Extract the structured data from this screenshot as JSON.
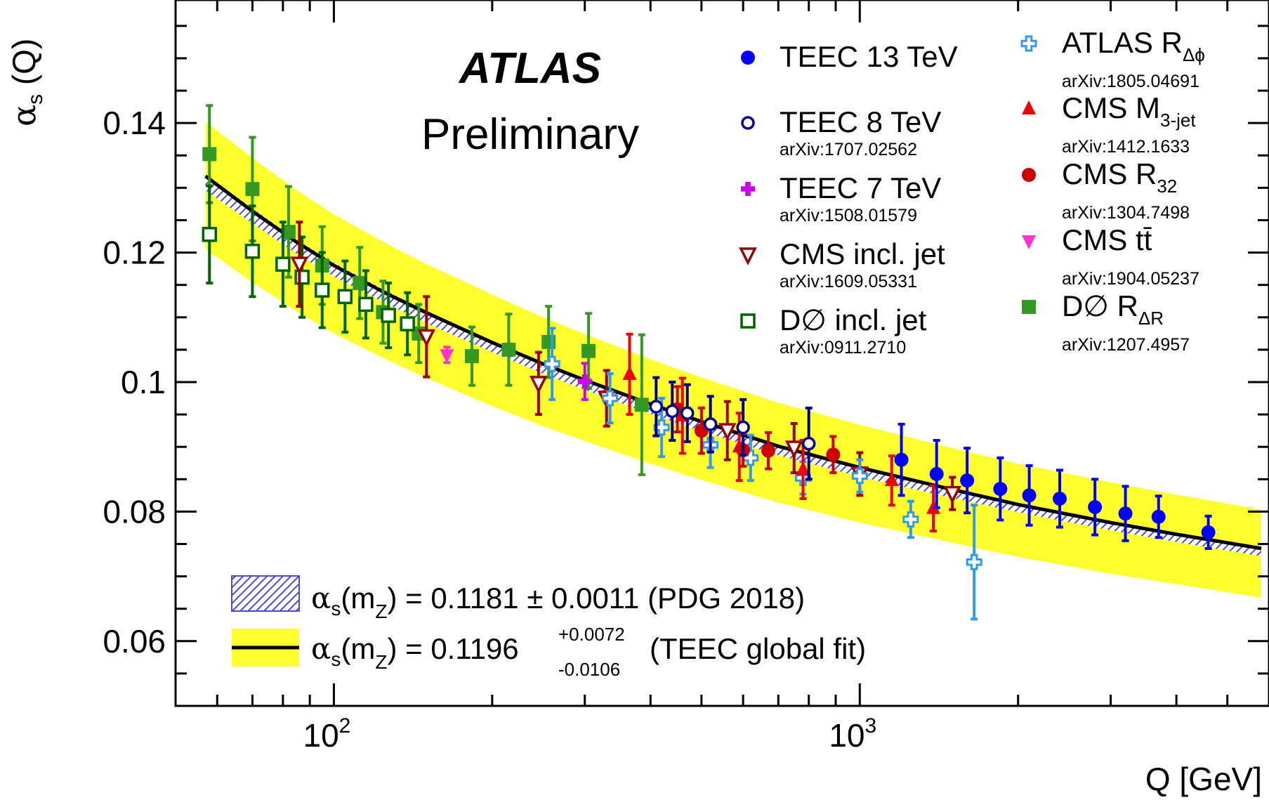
{
  "chart_data": {
    "type": "scatter",
    "experiment": "ATLAS",
    "status": "Preliminary",
    "xlabel": "Q [GeV]",
    "ylabel": {
      "main": "α",
      "sub": "s",
      "rest": " (Q)"
    },
    "xscale": "log",
    "xlim": [
      50,
      6000
    ],
    "ylim": [
      0.05,
      0.159
    ],
    "xticks": [
      {
        "value": 100,
        "base": "10",
        "exp": "2"
      },
      {
        "value": 1000,
        "base": "10",
        "exp": "3"
      }
    ],
    "yticks": [
      {
        "value": 0.06,
        "label": "0.06"
      },
      {
        "value": 0.08,
        "label": "0.08"
      },
      {
        "value": 0.1,
        "label": "0.1"
      },
      {
        "value": 0.12,
        "label": "0.12"
      },
      {
        "value": 0.14,
        "label": "0.14"
      }
    ],
    "bands": [
      {
        "name": "PDG 2018",
        "pattern": "hatched",
        "fill": "#3b3bd4",
        "text_main": "α",
        "text_sub": "s",
        "text_mid": "(m",
        "text_sub2": "Z",
        "text_rest": ") = 0.1181 ± 0.0011 (PDG 2018)",
        "x": [
          57,
          70,
          85,
          100,
          125,
          150,
          200,
          250,
          300,
          400,
          500,
          700,
          1000,
          1500,
          2000,
          3000,
          4000,
          5800
        ],
        "low": [
          0.1296,
          0.1245,
          0.1198,
          0.1163,
          0.1122,
          0.1091,
          0.1046,
          0.1013,
          0.0988,
          0.0951,
          0.0924,
          0.0887,
          0.0854,
          0.0821,
          0.0799,
          0.0771,
          0.0753,
          0.0731
        ],
        "high": [
          0.1321,
          0.1268,
          0.122,
          0.1184,
          0.1142,
          0.111,
          0.1064,
          0.1031,
          0.1005,
          0.0968,
          0.094,
          0.0902,
          0.0869,
          0.0835,
          0.0812,
          0.0784,
          0.0766,
          0.0744
        ]
      },
      {
        "name": "TEEC global fit",
        "fill": "#ffff2e",
        "text_main": "α",
        "text_sub": "s",
        "text_mid": "(m",
        "text_sub2": "Z",
        "text_rest1": ") = 0.1196",
        "err_up": "+0.0072",
        "err_down": "-0.0106",
        "text_rest2": "(TEEC global fit)",
        "x": [
          57,
          70,
          85,
          100,
          125,
          150,
          200,
          250,
          300,
          400,
          500,
          700,
          1000,
          1500,
          2000,
          3000,
          4000,
          5800
        ],
        "central": [
          0.1318,
          0.1264,
          0.1216,
          0.118,
          0.1138,
          0.1107,
          0.1061,
          0.1028,
          0.1003,
          0.0966,
          0.0939,
          0.0901,
          0.0868,
          0.0834,
          0.0811,
          0.0783,
          0.0765,
          0.0743
        ],
        "low": [
          0.1205,
          0.1154,
          0.1109,
          0.1075,
          0.1036,
          0.1006,
          0.0963,
          0.0932,
          0.0909,
          0.0874,
          0.0849,
          0.0814,
          0.0783,
          0.0752,
          0.073,
          0.0704,
          0.0688,
          0.0667
        ],
        "high": [
          0.1402,
          0.1346,
          0.1296,
          0.1259,
          0.1215,
          0.1182,
          0.1135,
          0.11,
          0.1074,
          0.1035,
          0.1007,
          0.0968,
          0.0934,
          0.0898,
          0.0874,
          0.0845,
          0.0826,
          0.0803
        ]
      }
    ],
    "series": [
      {
        "name": "TEEC 13 TeV",
        "label": "TEEC 13 TeV",
        "sub": "",
        "ref": "",
        "marker": "circle-filled",
        "color": "#0000ff",
        "points": [
          {
            "x": 1200,
            "y": 0.088,
            "el": 0.0055,
            "eh": 0.0055
          },
          {
            "x": 1400,
            "y": 0.0858,
            "el": 0.0052,
            "eh": 0.0052
          },
          {
            "x": 1600,
            "y": 0.0848,
            "el": 0.005,
            "eh": 0.005
          },
          {
            "x": 1850,
            "y": 0.0835,
            "el": 0.0048,
            "eh": 0.0048
          },
          {
            "x": 2100,
            "y": 0.0825,
            "el": 0.0046,
            "eh": 0.0046
          },
          {
            "x": 2400,
            "y": 0.082,
            "el": 0.0044,
            "eh": 0.0044
          },
          {
            "x": 2800,
            "y": 0.0807,
            "el": 0.0043,
            "eh": 0.0043
          },
          {
            "x": 3200,
            "y": 0.0797,
            "el": 0.0042,
            "eh": 0.0042
          },
          {
            "x": 3700,
            "y": 0.0792,
            "el": 0.0032,
            "eh": 0.0032
          },
          {
            "x": 4600,
            "y": 0.0768,
            "el": 0.0025,
            "eh": 0.0025
          }
        ]
      },
      {
        "name": "TEEC 8 TeV",
        "label": "TEEC 8 TeV",
        "sub": "",
        "ref": "arXiv:1707.02562",
        "marker": "circle-open",
        "color": "#00008b",
        "points": [
          {
            "x": 410,
            "y": 0.0962,
            "el": 0.0045,
            "eh": 0.0045
          },
          {
            "x": 440,
            "y": 0.0955,
            "el": 0.0045,
            "eh": 0.0045
          },
          {
            "x": 470,
            "y": 0.0952,
            "el": 0.0044,
            "eh": 0.0044
          },
          {
            "x": 520,
            "y": 0.0935,
            "el": 0.0043,
            "eh": 0.0043
          },
          {
            "x": 600,
            "y": 0.093,
            "el": 0.0043,
            "eh": 0.0043
          },
          {
            "x": 800,
            "y": 0.0905,
            "el": 0.0055,
            "eh": 0.0055
          }
        ]
      },
      {
        "name": "TEEC 7 TeV",
        "label": "TEEC 7 TeV",
        "sub": "",
        "ref": "arXiv:1508.01579",
        "marker": "cross-filled",
        "color": "#cc00ee",
        "points": [
          {
            "x": 300,
            "y": 0.1001,
            "el": 0.0028,
            "eh": 0.0028
          }
        ]
      },
      {
        "name": "CMS incl. jet",
        "label": "CMS incl. jet",
        "sub": "",
        "ref": "arXiv:1609.05331",
        "marker": "triangle-down-open",
        "color": "#990000",
        "points": [
          {
            "x": 86,
            "y": 0.1182,
            "el": 0.0065,
            "eh": 0.0065
          },
          {
            "x": 150,
            "y": 0.107,
            "el": 0.0062,
            "eh": 0.0062
          },
          {
            "x": 245,
            "y": 0.0998,
            "el": 0.0048,
            "eh": 0.0048
          },
          {
            "x": 330,
            "y": 0.0975,
            "el": 0.0043,
            "eh": 0.0043
          },
          {
            "x": 560,
            "y": 0.0925,
            "el": 0.0045,
            "eh": 0.0045
          },
          {
            "x": 750,
            "y": 0.0898,
            "el": 0.0038,
            "eh": 0.0038
          },
          {
            "x": 1000,
            "y": 0.0858,
            "el": 0.0033,
            "eh": 0.0033
          },
          {
            "x": 1500,
            "y": 0.0828,
            "el": 0.0025,
            "eh": 0.0025
          }
        ]
      },
      {
        "name": "D0 incl. jet",
        "label": "D∅ incl. jet",
        "sub": "",
        "ref": "arXiv:0911.2710",
        "marker": "square-open",
        "color": "#006400",
        "points": [
          {
            "x": 58,
            "y": 0.1228,
            "el": 0.0075,
            "eh": 0.0075
          },
          {
            "x": 70,
            "y": 0.1202,
            "el": 0.007,
            "eh": 0.007
          },
          {
            "x": 80,
            "y": 0.1182,
            "el": 0.0065,
            "eh": 0.0065
          },
          {
            "x": 87,
            "y": 0.1162,
            "el": 0.0062,
            "eh": 0.0062
          },
          {
            "x": 95,
            "y": 0.1142,
            "el": 0.0058,
            "eh": 0.0058
          },
          {
            "x": 105,
            "y": 0.1132,
            "el": 0.0055,
            "eh": 0.0055
          },
          {
            "x": 115,
            "y": 0.112,
            "el": 0.0052,
            "eh": 0.0052
          },
          {
            "x": 127,
            "y": 0.1103,
            "el": 0.005,
            "eh": 0.005
          },
          {
            "x": 138,
            "y": 0.109,
            "el": 0.0048,
            "eh": 0.0048
          }
        ]
      },
      {
        "name": "ATLAS R_dphi",
        "label": "ATLAS R",
        "sub": "Δϕ",
        "ref": "arXiv:1805.04691",
        "marker": "cross-open",
        "color": "#3399ee",
        "points": [
          {
            "x": 260,
            "y": 0.1028,
            "el": 0.0055,
            "eh": 0.0055
          },
          {
            "x": 335,
            "y": 0.0975,
            "el": 0.0038,
            "eh": 0.0038
          },
          {
            "x": 420,
            "y": 0.093,
            "el": 0.0045,
            "eh": 0.0045
          },
          {
            "x": 520,
            "y": 0.0903,
            "el": 0.0035,
            "eh": 0.0035
          },
          {
            "x": 620,
            "y": 0.0883,
            "el": 0.0035,
            "eh": 0.0035
          },
          {
            "x": 780,
            "y": 0.0852,
            "el": 0.0025,
            "eh": 0.0025
          },
          {
            "x": 1000,
            "y": 0.0855,
            "el": 0.0025,
            "eh": 0.0025
          },
          {
            "x": 1250,
            "y": 0.0788,
            "el": 0.0028,
            "eh": 0.0028
          },
          {
            "x": 1650,
            "y": 0.0722,
            "el": 0.0088,
            "eh": 0.0088
          }
        ]
      },
      {
        "name": "CMS M3-jet",
        "label": "CMS M",
        "sub": "3-jet",
        "ref": "arXiv:1412.1633",
        "marker": "triangle-up-filled",
        "color": "#ee0000",
        "points": [
          {
            "x": 365,
            "y": 0.1012,
            "el": 0.0062,
            "eh": 0.0062
          },
          {
            "x": 460,
            "y": 0.0948,
            "el": 0.0058,
            "eh": 0.0058
          },
          {
            "x": 590,
            "y": 0.09,
            "el": 0.0052,
            "eh": 0.0052
          },
          {
            "x": 780,
            "y": 0.0865,
            "el": 0.0045,
            "eh": 0.0045
          },
          {
            "x": 1150,
            "y": 0.0848,
            "el": 0.0038,
            "eh": 0.0038
          },
          {
            "x": 1380,
            "y": 0.0805,
            "el": 0.0035,
            "eh": 0.0035
          }
        ]
      },
      {
        "name": "CMS R32",
        "label": "CMS R",
        "sub": "32",
        "ref": "arXiv:1304.7498",
        "marker": "circle-filled",
        "color": "#cc0000",
        "points": [
          {
            "x": 450,
            "y": 0.0958,
            "el": 0.0035,
            "eh": 0.0035
          },
          {
            "x": 500,
            "y": 0.0925,
            "el": 0.0035,
            "eh": 0.0035
          },
          {
            "x": 600,
            "y": 0.0895,
            "el": 0.0025,
            "eh": 0.0025
          },
          {
            "x": 670,
            "y": 0.0894,
            "el": 0.0028,
            "eh": 0.0028
          },
          {
            "x": 890,
            "y": 0.0888,
            "el": 0.0028,
            "eh": 0.0028
          }
        ]
      },
      {
        "name": "CMS ttbar",
        "label": "CMS tt̄",
        "sub": "",
        "ref": "arXiv:1904.05237",
        "marker": "triangle-down-filled",
        "color": "#ff33cc",
        "points": [
          {
            "x": 164,
            "y": 0.1042,
            "el": 0.0012,
            "eh": 0.0012
          }
        ]
      },
      {
        "name": "D0 R_dR",
        "label": "D∅ R",
        "sub": "ΔR",
        "ref": "arXiv:1207.4957",
        "marker": "square-filled",
        "color": "#339922",
        "points": [
          {
            "x": 58,
            "y": 0.1352,
            "el": 0.0075,
            "eh": 0.0075
          },
          {
            "x": 70,
            "y": 0.1298,
            "el": 0.008,
            "eh": 0.008
          },
          {
            "x": 82,
            "y": 0.1232,
            "el": 0.007,
            "eh": 0.007
          },
          {
            "x": 95,
            "y": 0.118,
            "el": 0.006,
            "eh": 0.006
          },
          {
            "x": 112,
            "y": 0.1153,
            "el": 0.0055,
            "eh": 0.0055
          },
          {
            "x": 124,
            "y": 0.1108,
            "el": 0.0048,
            "eh": 0.0048
          },
          {
            "x": 145,
            "y": 0.1075,
            "el": 0.0045,
            "eh": 0.0045
          },
          {
            "x": 183,
            "y": 0.104,
            "el": 0.0045,
            "eh": 0.0045
          },
          {
            "x": 215,
            "y": 0.105,
            "el": 0.0055,
            "eh": 0.0055
          },
          {
            "x": 256,
            "y": 0.1062,
            "el": 0.0055,
            "eh": 0.0055
          },
          {
            "x": 305,
            "y": 0.1048,
            "el": 0.0058,
            "eh": 0.0058
          },
          {
            "x": 385,
            "y": 0.0965,
            "el": 0.0108,
            "eh": 0.0108
          }
        ]
      }
    ]
  }
}
